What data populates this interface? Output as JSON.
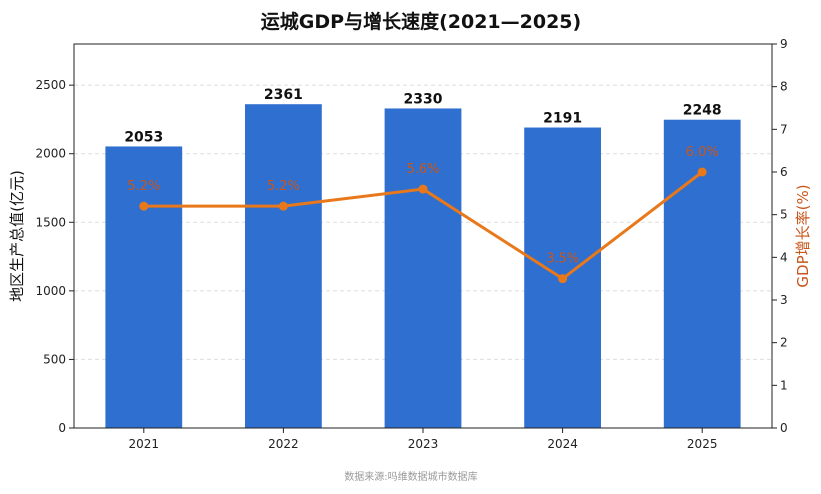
{
  "chart_data": {
    "type": "bar",
    "title": "运城GDP与增长速度(2021—2025)",
    "categories": [
      "2021",
      "2022",
      "2023",
      "2024",
      "2025"
    ],
    "series": [
      {
        "name": "",
        "type": "bar",
        "axis": "left",
        "values": [
          2053,
          2361,
          2330,
          2191,
          2248
        ],
        "color": "#2f6fd0"
      },
      {
        "name": "",
        "type": "line",
        "axis": "right",
        "values": [
          5.2,
          5.2,
          5.6,
          3.5,
          6.0
        ],
        "color": "#e8781a"
      }
    ],
    "bar_value_labels": [
      "2053",
      "2361",
      "2330",
      "2191",
      "2248"
    ],
    "rate_value_labels": [
      "5.2%",
      "5.2%",
      "5.6%",
      "3.5%",
      "6.0%"
    ],
    "ylabel": "地区生产总值(亿元)",
    "ylabel_right": "GDP增长率(%)",
    "ylim": [
      0,
      2800
    ],
    "ylim_right": [
      0,
      9
    ],
    "yticks": [
      0,
      500,
      1000,
      1500,
      2000,
      2500
    ],
    "yticks_right": [
      0,
      1,
      2,
      3,
      4,
      5,
      6,
      7,
      8,
      9
    ],
    "grid": true,
    "legend": "none",
    "source": "数据来源:吗维数据城市数据库",
    "colors": {
      "bar": "#2f6fd0",
      "line": "#e8781a",
      "rate_label": "#c8561a",
      "grid": "#dddddd"
    }
  }
}
